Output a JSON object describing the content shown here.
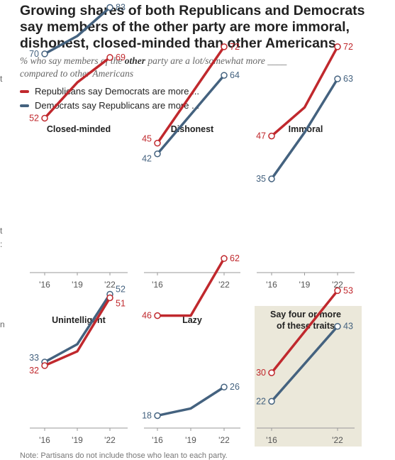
{
  "title_lines": [
    "Growing shares of both Republicans and Democrats",
    "say members of the other party are more immoral,",
    "dishonest, closed-minded than other Americans"
  ],
  "subtitle": {
    "line1_a": "% who say members of the ",
    "line1_emph": "other",
    "line1_b": " party are a lot/somewhat more ____",
    "line2": "compared to other Americans"
  },
  "legend": {
    "rep": "Republicans say Democrats are more ...",
    "dem": "Democrats say Republicans are more ..."
  },
  "colors": {
    "rep": "#c0282d",
    "dem": "#44627f",
    "highlight_bg": "#ebe8da",
    "axis": "#999999"
  },
  "margin_marks": [
    "t",
    "t",
    ":",
    "n"
  ],
  "note": "Note: Partisans do not include those who lean to each party.",
  "chart_data": [
    {
      "type": "line",
      "title": "Closed-minded",
      "x": [
        "'16",
        "'19",
        "'22"
      ],
      "series": [
        {
          "name": "Republicans say Democrats are more ...",
          "values": [
            52,
            62,
            69
          ]
        },
        {
          "name": "Democrats say Republicans are more ...",
          "values": [
            70,
            75,
            83
          ]
        }
      ]
    },
    {
      "type": "line",
      "title": "Dishonest",
      "x": [
        "'16",
        "'22"
      ],
      "series": [
        {
          "name": "Republicans say Democrats are more ...",
          "values": [
            45,
            72
          ]
        },
        {
          "name": "Democrats say Republicans are more ...",
          "values": [
            42,
            64
          ]
        }
      ]
    },
    {
      "type": "line",
      "title": "Immoral",
      "x": [
        "'16",
        "'19",
        "'22"
      ],
      "series": [
        {
          "name": "Republicans say Democrats are more ...",
          "values": [
            47,
            55,
            72
          ]
        },
        {
          "name": "Democrats say Republicans are more ...",
          "values": [
            35,
            48,
            63
          ]
        }
      ]
    },
    {
      "type": "line",
      "title": "Unintelligent",
      "x": [
        "'16",
        "'19",
        "'22"
      ],
      "series": [
        {
          "name": "Republicans say Democrats are more ...",
          "values": [
            32,
            36,
            51
          ]
        },
        {
          "name": "Democrats say Republicans are more ...",
          "values": [
            33,
            38,
            52
          ]
        }
      ]
    },
    {
      "type": "line",
      "title": "Lazy",
      "x": [
        "'16",
        "'19",
        "'22"
      ],
      "series": [
        {
          "name": "Republicans say Democrats are more ...",
          "values": [
            46,
            46,
            62
          ]
        },
        {
          "name": "Democrats say Republicans are more ...",
          "values": [
            18,
            20,
            26
          ]
        }
      ]
    },
    {
      "type": "line",
      "title": "Say four or more\nof these traits",
      "highlight": true,
      "x": [
        "'16",
        "'22"
      ],
      "series": [
        {
          "name": "Republicans say Democrats are more ...",
          "values": [
            30,
            53
          ]
        },
        {
          "name": "Democrats say Republicans are more ...",
          "values": [
            22,
            43
          ]
        }
      ]
    }
  ]
}
